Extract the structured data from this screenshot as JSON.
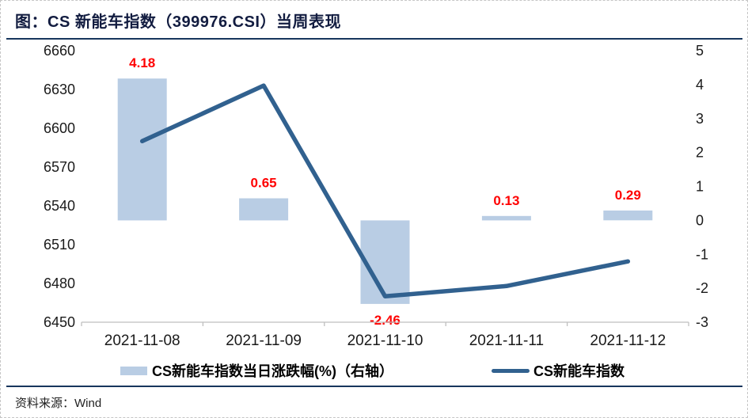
{
  "title": "图：CS 新能车指数（399976.CSI）当周表现",
  "source": {
    "label": "资料来源：",
    "value": "Wind"
  },
  "colors": {
    "bar": "#b9cde4",
    "line": "#31618f",
    "data_label": "#ff0000",
    "axis_line": "#bfbfbf",
    "navy_rule": "#17365d",
    "axis_text": "#1a1a1a"
  },
  "chart_data": {
    "type": "combo_bar_line",
    "title": "CS 新能车指数（399976.CSI）当周表现",
    "categories": [
      "2021-11-08",
      "2021-11-09",
      "2021-11-10",
      "2021-11-11",
      "2021-11-12"
    ],
    "series": [
      {
        "name": "CS新能车指数当日涨跌幅(%)（右轴）",
        "type": "bar",
        "axis": "right",
        "values": [
          4.18,
          0.65,
          -2.46,
          0.13,
          0.29
        ],
        "data_labels": [
          "4.18",
          "0.65",
          "-2.46",
          "0.13",
          "0.29"
        ],
        "color": "#b9cde4",
        "label_color": "#ff0000"
      },
      {
        "name": "CS新能车指数",
        "type": "line",
        "axis": "left",
        "values": [
          6590,
          6633,
          6470,
          6478,
          6497
        ],
        "color": "#31618f"
      }
    ],
    "left_axis": {
      "min": 6450,
      "max": 6660,
      "step": 30,
      "ticks": [
        6660,
        6630,
        6600,
        6570,
        6540,
        6510,
        6480,
        6450
      ]
    },
    "right_axis": {
      "min": -3,
      "max": 5,
      "step": 1,
      "ticks": [
        5,
        4,
        3,
        2,
        1,
        0,
        -1,
        -2,
        -3
      ]
    },
    "grid": false,
    "legend_position": "bottom"
  }
}
